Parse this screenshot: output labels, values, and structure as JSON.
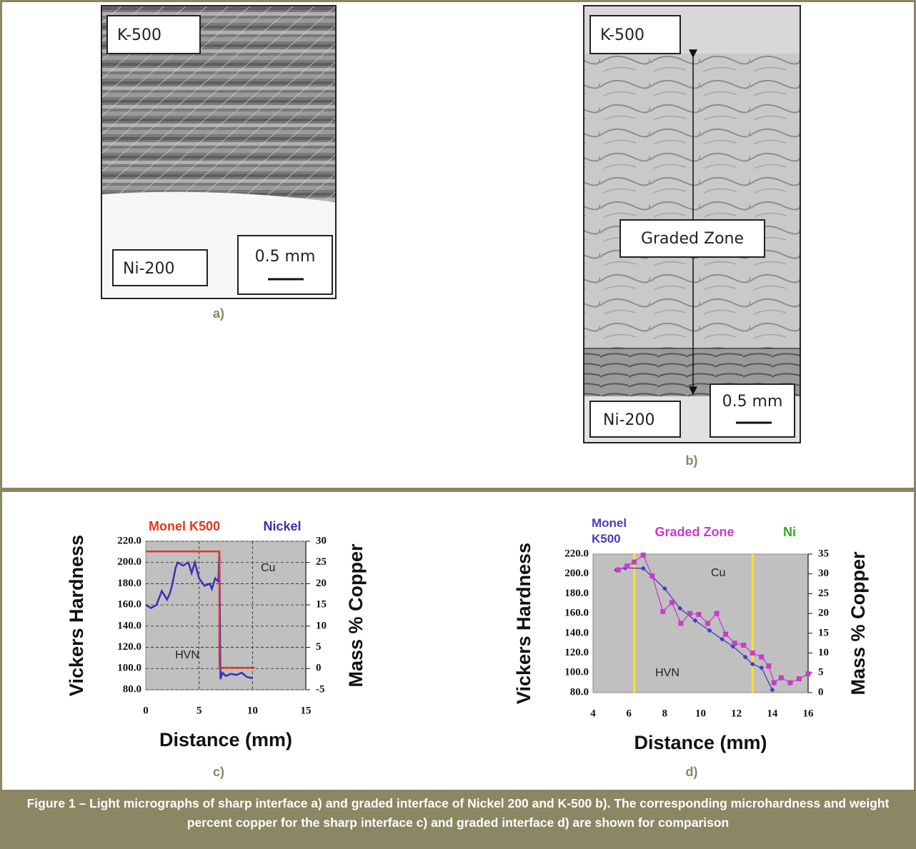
{
  "micrographs": [
    {
      "labels": [
        "K-500",
        "Ni-200"
      ],
      "scale": "0.5 mm",
      "label": "a)"
    },
    {
      "labels": [
        "K-500",
        "Graded Zone",
        "Ni-200"
      ],
      "scale": "0.5 mm",
      "label": "b)"
    }
  ],
  "chart_data": [
    {
      "type": "line",
      "label": "c)",
      "region_labels": [
        {
          "text": "Monel K500",
          "color": "#e5391e"
        },
        {
          "text": "Nickel",
          "color": "#3a2fb7"
        }
      ],
      "ylabel": "Vickers Hardness",
      "y2label": "Mass % Copper",
      "xlabel": "Distance (mm)",
      "xlim": [
        0,
        15
      ],
      "xticks": [
        0,
        5,
        10,
        15
      ],
      "ylim": [
        80,
        220
      ],
      "yticks": [
        {
          "value": 80,
          "label": "80.0"
        },
        {
          "value": 100,
          "label": "100.0"
        },
        {
          "value": 120,
          "label": "120.0"
        },
        {
          "value": 140,
          "label": "140.0"
        },
        {
          "value": 160,
          "label": "160.0"
        },
        {
          "value": 180,
          "label": "180.0"
        },
        {
          "value": 200,
          "label": "200.0"
        },
        {
          "value": 220,
          "label": "220.0"
        }
      ],
      "y2lim": [
        -5,
        30
      ],
      "y2ticks": [
        -5,
        0,
        5,
        10,
        15,
        20,
        25,
        30
      ],
      "grid": true,
      "background": "#c0c0c0",
      "series": [
        {
          "name": "HVN",
          "color": "#3a2fb7",
          "x": [
            0,
            0.5,
            1,
            1.5,
            2,
            2.3,
            2.5,
            2.8,
            3,
            3.5,
            4,
            4.3,
            4.6,
            5,
            5.5,
            6,
            6.2,
            6.5,
            6.8,
            6.9,
            7,
            7.2,
            7.5,
            8,
            8.5,
            9,
            9.5,
            10
          ],
          "values": [
            160,
            157,
            160,
            173,
            165,
            172,
            180,
            195,
            200,
            197,
            200,
            190,
            200,
            185,
            178,
            180,
            175,
            185,
            182,
            210,
            90,
            96,
            93,
            95,
            94,
            96,
            92,
            91
          ]
        },
        {
          "name": "Cu",
          "color": "#e5391e",
          "axis": "y2",
          "x": [
            0,
            6.9,
            6.9,
            10.2
          ],
          "values": [
            27.6,
            27.6,
            0.2,
            0.2
          ]
        }
      ]
    },
    {
      "type": "line",
      "label": "d)",
      "region_labels": [
        {
          "text": "Monel K500",
          "color": "#4a3bbf"
        },
        {
          "text": "Graded Zone",
          "color": "#c83cc8"
        },
        {
          "text": "Ni",
          "color": "#33aa22"
        }
      ],
      "ylabel": "Vickers Hardness",
      "y2label": "Mass % Copper",
      "xlabel": "Distance (mm)",
      "xlim": [
        4,
        16
      ],
      "xticks": [
        4,
        6,
        8,
        10,
        12,
        14,
        16
      ],
      "ylim": [
        80,
        220
      ],
      "yticks": [
        {
          "value": 80,
          "label": "80.0"
        },
        {
          "value": 100,
          "label": "100.0"
        },
        {
          "value": 120,
          "label": "120.0"
        },
        {
          "value": 140,
          "label": "140.0"
        },
        {
          "value": 160,
          "label": "160.0"
        },
        {
          "value": 180,
          "label": "180.0"
        },
        {
          "value": 200,
          "label": "200.0"
        },
        {
          "value": 220,
          "label": "220.0"
        }
      ],
      "y2lim": [
        0,
        35
      ],
      "y2ticks": [
        0,
        5,
        10,
        15,
        20,
        25,
        30,
        35
      ],
      "grid": false,
      "background": "#c0c0c0",
      "vlines": [
        {
          "x": 6.3,
          "color": "#ffe21f"
        },
        {
          "x": 12.9,
          "color": "#ffe21f"
        }
      ],
      "series": [
        {
          "name": "Cu",
          "color": "#4a3bbf",
          "axis": "y2",
          "marker": "diamond",
          "x": [
            5.3,
            5.8,
            6.8,
            8.0,
            8.85,
            9.7,
            10.5,
            11.2,
            11.8,
            12.5,
            12.9,
            13.4,
            14.0
          ],
          "values": [
            31,
            31.5,
            31.4,
            26.3,
            21.3,
            18.2,
            15.7,
            13.5,
            11.7,
            9.0,
            7.2,
            6.3,
            0.7
          ]
        },
        {
          "name": "HVN",
          "color": "#c83cc8",
          "marker": "square",
          "x": [
            5.4,
            5.9,
            6.3,
            6.8,
            7.3,
            7.9,
            8.4,
            8.9,
            9.4,
            9.9,
            10.4,
            10.9,
            11.4,
            11.9,
            12.4,
            12.9,
            13.4,
            13.8,
            14.1,
            14.5,
            15.0,
            15.5,
            16.0
          ],
          "values": [
            204,
            208,
            212,
            219,
            198,
            162,
            171,
            150,
            160,
            159,
            150,
            160,
            139,
            130,
            128,
            120,
            116,
            107,
            90,
            95,
            90,
            94,
            99
          ]
        }
      ]
    }
  ],
  "caption": "Figure 1 – Light micrographs of sharp interface a) and graded interface of Nickel 200 and K-500 b). The corresponding microhardness and weight percent copper for the sharp interface c) and graded interface d) are shown for comparison"
}
